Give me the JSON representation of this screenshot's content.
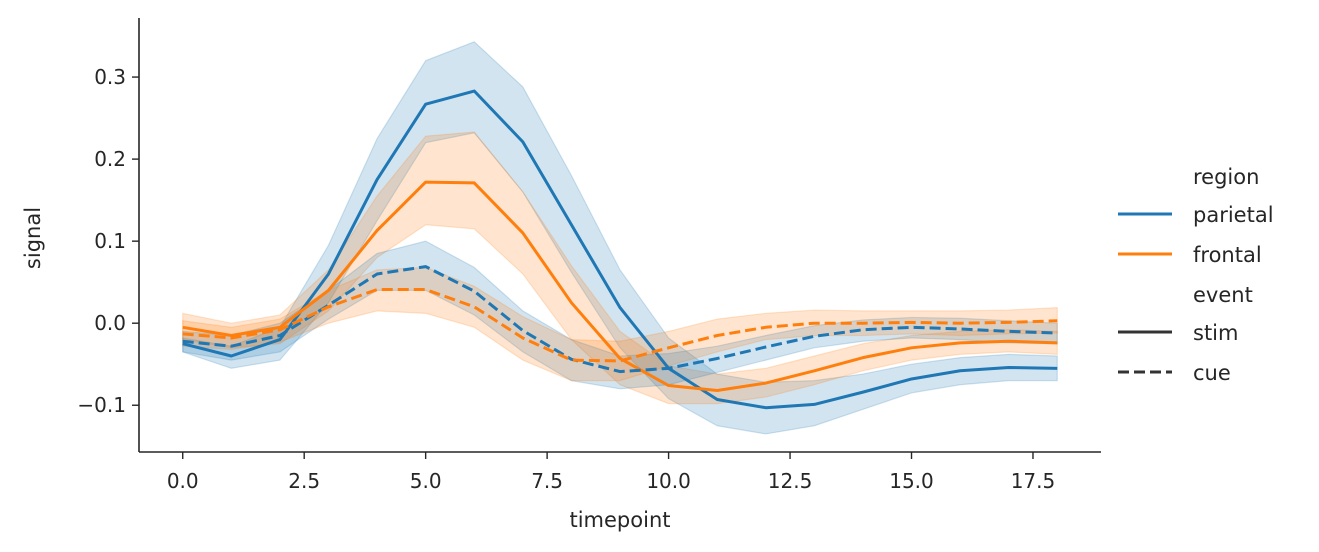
{
  "chart_data": {
    "type": "line",
    "xlabel": "timepoint",
    "ylabel": "signal",
    "xlim": [
      -0.9,
      18.9
    ],
    "ylim": [
      -0.157,
      0.372
    ],
    "xticks": [
      0.0,
      2.5,
      5.0,
      7.5,
      10.0,
      12.5,
      15.0,
      17.5
    ],
    "xtick_labels": [
      "0.0",
      "2.5",
      "5.0",
      "7.5",
      "10.0",
      "12.5",
      "15.0",
      "17.5"
    ],
    "yticks": [
      -0.1,
      0.0,
      0.1,
      0.2,
      0.3
    ],
    "ytick_labels": [
      "−0.1",
      "0.0",
      "0.1",
      "0.2",
      "0.3"
    ],
    "x": [
      0,
      1,
      2,
      3,
      4,
      5,
      6,
      7,
      8,
      9,
      10,
      11,
      12,
      13,
      14,
      15,
      16,
      17,
      18
    ],
    "colors": {
      "parietal": "#1f77b4",
      "frontal": "#ff7f0e"
    },
    "series": [
      {
        "region": "parietal",
        "event": "stim",
        "dash": "solid",
        "values": [
          -0.025,
          -0.04,
          -0.02,
          0.06,
          0.175,
          0.267,
          0.283,
          0.221,
          0.12,
          0.019,
          -0.055,
          -0.093,
          -0.103,
          -0.099,
          -0.084,
          -0.068,
          -0.058,
          -0.054,
          -0.055
        ],
        "lower": [
          -0.035,
          -0.055,
          -0.045,
          0.025,
          0.125,
          0.22,
          0.232,
          0.16,
          0.062,
          -0.03,
          -0.092,
          -0.125,
          -0.135,
          -0.125,
          -0.105,
          -0.085,
          -0.075,
          -0.07,
          -0.07
        ],
        "upper": [
          -0.018,
          -0.028,
          -0.005,
          0.095,
          0.225,
          0.32,
          0.343,
          0.288,
          0.18,
          0.065,
          -0.018,
          -0.062,
          -0.072,
          -0.07,
          -0.062,
          -0.05,
          -0.042,
          -0.038,
          -0.04
        ]
      },
      {
        "region": "frontal",
        "event": "stim",
        "dash": "solid",
        "values": [
          -0.005,
          -0.015,
          -0.005,
          0.04,
          0.113,
          0.172,
          0.171,
          0.11,
          0.025,
          -0.043,
          -0.076,
          -0.082,
          -0.073,
          -0.058,
          -0.042,
          -0.03,
          -0.024,
          -0.022,
          -0.024
        ],
        "lower": [
          -0.02,
          -0.03,
          -0.025,
          0.015,
          0.08,
          0.12,
          0.115,
          0.06,
          -0.02,
          -0.075,
          -0.098,
          -0.098,
          -0.09,
          -0.075,
          -0.058,
          -0.045,
          -0.038,
          -0.035,
          -0.038
        ],
        "upper": [
          0.012,
          0.0,
          0.01,
          0.065,
          0.155,
          0.228,
          0.233,
          0.16,
          0.07,
          -0.01,
          -0.052,
          -0.062,
          -0.055,
          -0.04,
          -0.025,
          -0.015,
          -0.01,
          -0.008,
          -0.01
        ]
      },
      {
        "region": "parietal",
        "event": "cue",
        "dash": "dashed",
        "values": [
          -0.022,
          -0.028,
          -0.015,
          0.022,
          0.06,
          0.069,
          0.039,
          -0.009,
          -0.044,
          -0.059,
          -0.055,
          -0.043,
          -0.029,
          -0.016,
          -0.008,
          -0.005,
          -0.007,
          -0.01,
          -0.012
        ],
        "lower": [
          -0.035,
          -0.045,
          -0.035,
          0.005,
          0.04,
          0.04,
          0.01,
          -0.035,
          -0.07,
          -0.08,
          -0.075,
          -0.06,
          -0.045,
          -0.03,
          -0.022,
          -0.018,
          -0.02,
          -0.024,
          -0.025
        ],
        "upper": [
          -0.01,
          -0.015,
          0.0,
          0.04,
          0.085,
          0.1,
          0.068,
          0.015,
          -0.02,
          -0.04,
          -0.037,
          -0.028,
          -0.015,
          -0.003,
          0.004,
          0.007,
          0.006,
          0.003,
          0.0
        ]
      },
      {
        "region": "frontal",
        "event": "cue",
        "dash": "dashed",
        "values": [
          -0.013,
          -0.018,
          -0.008,
          0.02,
          0.041,
          0.041,
          0.02,
          -0.018,
          -0.045,
          -0.046,
          -0.03,
          -0.015,
          -0.005,
          0.0,
          0.0,
          0.001,
          0.0,
          0.001,
          0.003
        ],
        "lower": [
          -0.028,
          -0.032,
          -0.023,
          0.0,
          0.015,
          0.012,
          -0.005,
          -0.045,
          -0.07,
          -0.07,
          -0.052,
          -0.035,
          -0.02,
          -0.015,
          -0.015,
          -0.013,
          -0.015,
          -0.013,
          -0.012
        ],
        "upper": [
          0.003,
          -0.005,
          0.005,
          0.04,
          0.065,
          0.068,
          0.045,
          0.008,
          -0.02,
          -0.022,
          -0.01,
          0.005,
          0.012,
          0.016,
          0.015,
          0.015,
          0.015,
          0.016,
          0.019
        ]
      }
    ],
    "legend": {
      "placement": "right",
      "region_title": "region",
      "region_entries": [
        "parietal",
        "frontal"
      ],
      "event_title": "event",
      "event_entries": [
        "stim",
        "cue"
      ]
    }
  }
}
